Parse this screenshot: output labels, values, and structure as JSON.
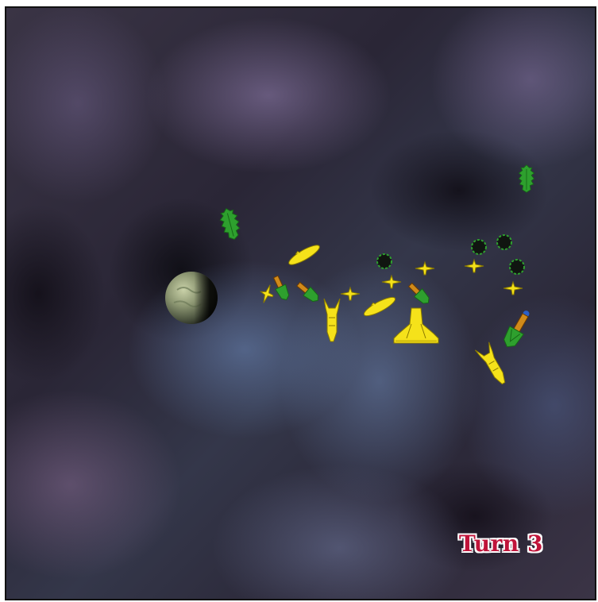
{
  "game": {
    "turn_label": "Turn 3"
  },
  "colors": {
    "player_yellow": "#f5e21a",
    "enemy_green": "#2ea02e",
    "planet": "#7d8a6a",
    "turn_text": "#c0143a"
  },
  "icons": {
    "planet": "planet-icon",
    "yellow_fighter": "yellow-fighter-icon",
    "yellow_cruiser": "yellow-cruiser-icon",
    "yellow_capital": "yellow-capital-ship-icon",
    "yellow_frigate": "yellow-frigate-icon",
    "green_beetle": "green-beetle-ship-icon",
    "green_mortar": "green-mortar-ship-icon",
    "green_mine": "green-spore-mine-icon"
  }
}
